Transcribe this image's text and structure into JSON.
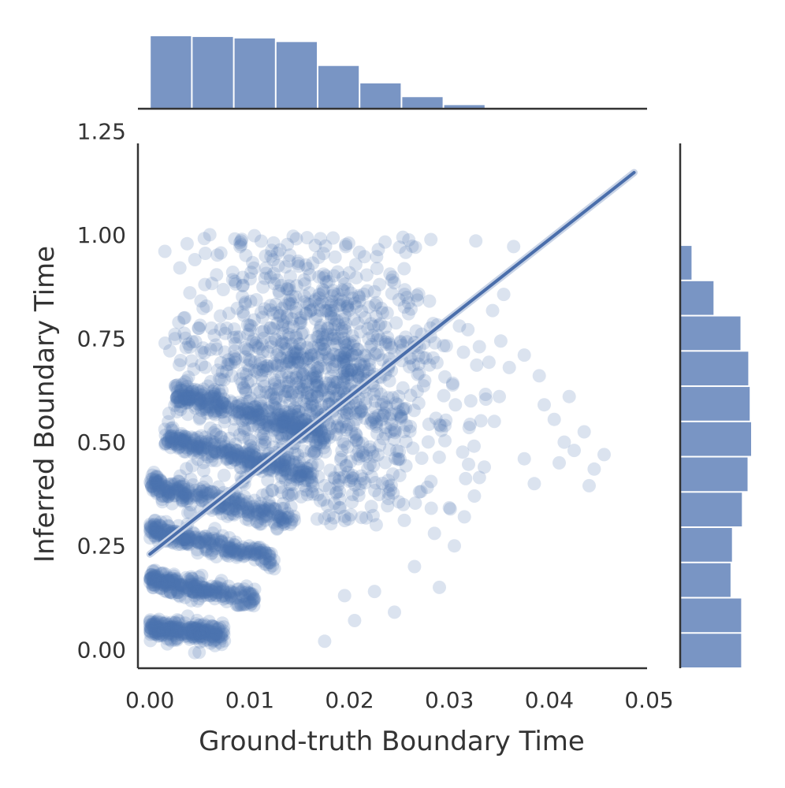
{
  "chart_data": {
    "type": "scatter",
    "subtype": "jointplot with marginal histograms and regression line",
    "title": "",
    "xlabel": "Ground-truth Boundary Time",
    "ylabel": "Inferred Boundary Time",
    "xlim": [
      -0.0012,
      0.0498
    ],
    "ylim": [
      -0.045,
      1.3
    ],
    "xticks": [
      "0.00",
      "0.01",
      "0.02",
      "0.03",
      "0.04",
      "0.05"
    ],
    "xtick_values": [
      0,
      0.01,
      0.02,
      0.03,
      0.04,
      0.05
    ],
    "yticks": [
      "0.00",
      "0.25",
      "0.50",
      "0.75",
      "1.00",
      "1.25"
    ],
    "ytick_values": [
      0,
      0.25,
      0.5,
      0.75,
      1.0,
      1.25
    ],
    "grid": false,
    "color": "#4c72b0",
    "point_alpha": 0.2,
    "regression_line": {
      "x": [
        0.0,
        0.0485
      ],
      "y": [
        0.23,
        1.15
      ]
    },
    "bands": [
      {
        "x": [
          0.0,
          0.0075
        ],
        "y0": 0.055,
        "y1": 0.035
      },
      {
        "x": [
          0.0,
          0.0105
        ],
        "y0": 0.17,
        "y1": 0.12
      },
      {
        "x": [
          0.0,
          0.0125
        ],
        "y0": 0.29,
        "y1": 0.22
      },
      {
        "x": [
          0.0,
          0.0145
        ],
        "y0": 0.4,
        "y1": 0.31
      },
      {
        "x": [
          0.0015,
          0.0165
        ],
        "y0": 0.51,
        "y1": 0.42
      },
      {
        "x": [
          0.0025,
          0.0175
        ],
        "y0": 0.62,
        "y1": 0.52
      }
    ],
    "cloud": {
      "x_center": 0.0165,
      "x_sd": 0.0065,
      "y_center": 0.64,
      "y_sd": 0.17,
      "x_min": 0.0015,
      "y_min": 0.3
    },
    "outlier_points": [
      [
        0.0455,
        0.47
      ],
      [
        0.0435,
        0.525
      ],
      [
        0.0445,
        0.435
      ],
      [
        0.044,
        0.395
      ],
      [
        0.0425,
        0.48
      ],
      [
        0.042,
        0.61
      ],
      [
        0.0405,
        0.555
      ],
      [
        0.0395,
        0.59
      ],
      [
        0.0385,
        0.4
      ],
      [
        0.0375,
        0.46
      ],
      [
        0.036,
        0.68
      ],
      [
        0.035,
        0.61
      ],
      [
        0.0345,
        0.55
      ],
      [
        0.0335,
        0.44
      ],
      [
        0.0325,
        0.37
      ],
      [
        0.0315,
        0.32
      ],
      [
        0.029,
        0.15
      ],
      [
        0.0285,
        0.28
      ],
      [
        0.0265,
        0.2
      ],
      [
        0.0245,
        0.09
      ],
      [
        0.0225,
        0.14
      ],
      [
        0.0175,
        0.02
      ],
      [
        0.0085,
        0.99
      ],
      [
        0.006,
        1.0
      ],
      [
        0.0045,
        0.94
      ],
      [
        0.003,
        0.92
      ],
      [
        0.004,
        0.86
      ],
      [
        0.0035,
        0.8
      ],
      [
        0.0025,
        0.76
      ],
      [
        0.0015,
        0.96
      ],
      [
        0.002,
        0.72
      ],
      [
        0.0055,
        0.88
      ],
      [
        0.025,
        0.97
      ],
      [
        0.023,
        0.88
      ],
      [
        0.028,
        0.84
      ],
      [
        0.031,
        0.78
      ],
      [
        0.033,
        0.73
      ],
      [
        0.0375,
        0.71
      ],
      [
        0.039,
        0.66
      ],
      [
        0.0415,
        0.5
      ],
      [
        0.041,
        0.45
      ],
      [
        0.0305,
        0.25
      ],
      [
        0.0205,
        0.07
      ],
      [
        0.0195,
        0.13
      ],
      [
        0.027,
        0.38
      ]
    ],
    "marginal_x_hist": {
      "bin_edges": [
        0.0,
        0.0042,
        0.0084,
        0.0126,
        0.0168,
        0.021,
        0.0252,
        0.0294,
        0.0336,
        0.0378
      ],
      "heights": [
        1.0,
        0.99,
        0.97,
        0.92,
        0.59,
        0.35,
        0.16,
        0.05,
        0.01
      ]
    },
    "marginal_y_hist": {
      "bin_edges": [
        -0.045,
        0.04,
        0.125,
        0.21,
        0.295,
        0.38,
        0.465,
        0.55,
        0.635,
        0.72,
        0.805,
        0.89,
        0.975
      ],
      "heights": [
        0.86,
        0.86,
        0.71,
        0.73,
        0.87,
        0.95,
        1.0,
        0.98,
        0.96,
        0.85,
        0.47,
        0.16
      ]
    }
  }
}
